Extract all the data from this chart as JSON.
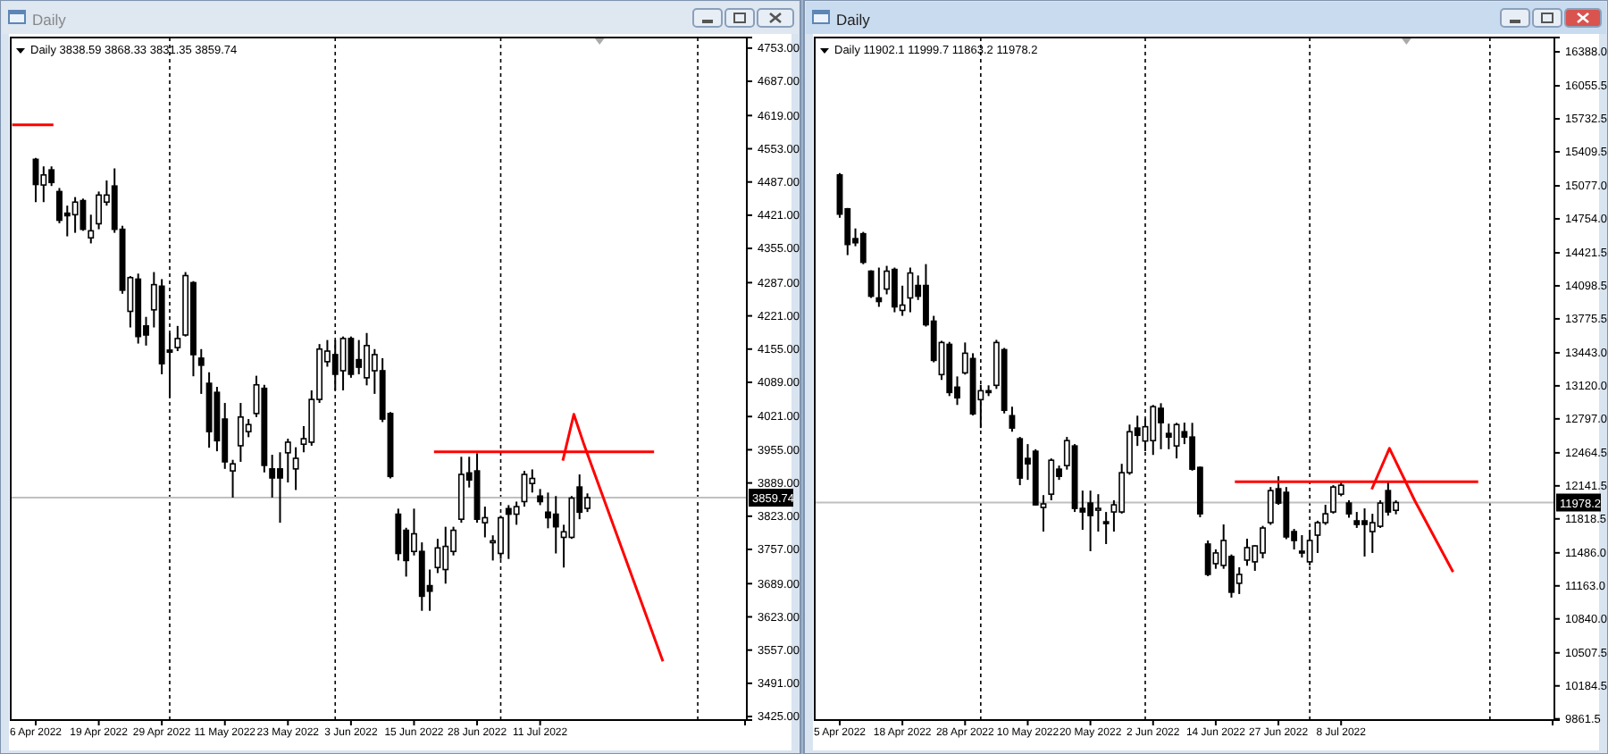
{
  "chart_data": [
    {
      "type": "candlestick",
      "title": "Daily",
      "subtitle": "Daily 3838.59 3868.33 3831.35 3859.74",
      "color": "#000000",
      "categories": [
        "6 Apr 2022",
        null,
        null,
        null,
        null,
        null,
        null,
        null,
        "19 Apr 2022",
        null,
        null,
        null,
        null,
        null,
        null,
        null,
        "29 Apr 2022",
        null,
        null,
        null,
        null,
        null,
        null,
        null,
        "11 May 2022",
        null,
        null,
        null,
        null,
        null,
        null,
        null,
        "23 May 2022",
        null,
        null,
        null,
        null,
        null,
        null,
        null,
        "3 Jun 2022",
        null,
        null,
        null,
        null,
        null,
        null,
        null,
        "15 Jun 2022",
        null,
        null,
        null,
        null,
        null,
        null,
        null,
        "28 Jun 2022",
        null,
        null,
        null,
        null,
        null,
        null,
        null,
        "11 Jul 2022",
        null,
        null,
        null,
        null,
        null,
        null,
        null,
        null,
        null,
        null,
        null,
        null,
        null,
        null,
        null,
        null,
        null,
        null,
        null,
        null,
        null,
        null,
        null,
        null,
        null,
        null
      ],
      "ohlc": [
        [
          4532,
          4535,
          4447,
          4482
        ],
        [
          4481,
          4518,
          4447,
          4501
        ],
        [
          4511,
          4518,
          4479,
          4486
        ],
        [
          4468,
          4475,
          4405,
          4411
        ],
        [
          4425,
          4440,
          4379,
          4420
        ],
        [
          4422,
          4457,
          4386,
          4447
        ],
        [
          4450,
          4454,
          4390,
          4393
        ],
        [
          4376,
          4422,
          4365,
          4390
        ],
        [
          4404,
          4468,
          4393,
          4461
        ],
        [
          4447,
          4490,
          4440,
          4461
        ],
        [
          4479,
          4514,
          4386,
          4393
        ],
        [
          4393,
          4400,
          4265,
          4272
        ],
        [
          4230,
          4300,
          4198,
          4297
        ],
        [
          4294,
          4305,
          4166,
          4180
        ],
        [
          4201,
          4219,
          4162,
          4183
        ],
        [
          4233,
          4308,
          4198,
          4283
        ],
        [
          4280,
          4294,
          4105,
          4126
        ],
        [
          4153,
          4187,
          4059,
          4149
        ],
        [
          4158,
          4201,
          4151,
          4176
        ],
        [
          4183,
          4308,
          4180,
          4301
        ],
        [
          4287,
          4290,
          4101,
          4144
        ],
        [
          4137,
          4155,
          4066,
          4123
        ],
        [
          4087,
          4109,
          3959,
          3991
        ],
        [
          4069,
          4080,
          3952,
          3973
        ],
        [
          4016,
          4048,
          3917,
          3931
        ],
        [
          3913,
          3935,
          3860,
          3927
        ],
        [
          3963,
          4048,
          3931,
          4020
        ],
        [
          3991,
          4016,
          3980,
          4005
        ],
        [
          4027,
          4102,
          4020,
          4084
        ],
        [
          4077,
          4084,
          3910,
          3924
        ],
        [
          3917,
          3945,
          3860,
          3899
        ],
        [
          3917,
          3950,
          3810,
          3899
        ],
        [
          3949,
          3977,
          3890,
          3970
        ],
        [
          3917,
          3960,
          3875,
          3938
        ],
        [
          3966,
          4002,
          3950,
          3977
        ],
        [
          3970,
          4073,
          3963,
          4055
        ],
        [
          4055,
          4165,
          4048,
          4155
        ],
        [
          4130,
          4173,
          4120,
          4151
        ],
        [
          4144,
          4173,
          4073,
          4105
        ],
        [
          4112,
          4180,
          4073,
          4176
        ],
        [
          4176,
          4180,
          4098,
          4105
        ],
        [
          4134,
          4173,
          4105,
          4119
        ],
        [
          4098,
          4187,
          4083,
          4162
        ],
        [
          4112,
          4155,
          4066,
          4144
        ],
        [
          4112,
          4137,
          4010,
          4016
        ],
        [
          4027,
          4030,
          3898,
          3902
        ],
        [
          3827,
          3838,
          3735,
          3749
        ],
        [
          3795,
          3800,
          3703,
          3735
        ],
        [
          3753,
          3838,
          3745,
          3788
        ],
        [
          3753,
          3771,
          3635,
          3664
        ],
        [
          3685,
          3717,
          3635,
          3674
        ],
        [
          3721,
          3778,
          3710,
          3760
        ],
        [
          3717,
          3802,
          3689,
          3763
        ],
        [
          3753,
          3802,
          3745,
          3795
        ],
        [
          3817,
          3941,
          3810,
          3906
        ],
        [
          3909,
          3941,
          3880,
          3895
        ],
        [
          3913,
          3948,
          3810,
          3817
        ],
        [
          3810,
          3842,
          3781,
          3820
        ],
        [
          3771,
          3785,
          3735,
          3774
        ],
        [
          3749,
          3824,
          3738,
          3820
        ],
        [
          3838,
          3845,
          3738,
          3827
        ],
        [
          3827,
          3852,
          3806,
          3842
        ],
        [
          3852,
          3913,
          3842,
          3906
        ],
        [
          3888,
          3916,
          3870,
          3898
        ],
        [
          3863,
          3877,
          3845,
          3852
        ],
        [
          3831,
          3870,
          3799,
          3820
        ],
        [
          3827,
          3863,
          3749,
          3802
        ],
        [
          3781,
          3806,
          3721,
          3792
        ],
        [
          3781,
          3863,
          3778,
          3859
        ],
        [
          3881,
          3906,
          3817,
          3831
        ],
        [
          3838.59,
          3868.33,
          3831.35,
          3859.74
        ],
        null,
        null,
        null,
        null,
        null,
        null,
        null,
        null,
        null,
        null,
        null,
        null,
        null,
        null,
        null,
        null,
        null,
        null,
        null,
        null
      ],
      "ylim": [
        3418,
        4774
      ],
      "yticks": [
        {
          "value": 3425,
          "label": "3425.00"
        },
        {
          "value": 3491,
          "label": "3491.00"
        },
        {
          "value": 3557,
          "label": "3557.00"
        },
        {
          "value": 3623,
          "label": "3623.00"
        },
        {
          "value": 3689,
          "label": "3689.00"
        },
        {
          "value": 3757,
          "label": "3757.00"
        },
        {
          "value": 3823,
          "label": "3823.00"
        },
        {
          "value": 3889,
          "label": "3889.00"
        },
        {
          "value": 3955,
          "label": "3955.00"
        },
        {
          "value": 4021,
          "label": "4021.00"
        },
        {
          "value": 4089,
          "label": "4089.00"
        },
        {
          "value": 4155,
          "label": "4155.00"
        },
        {
          "value": 4221,
          "label": "4221.00"
        },
        {
          "value": 4287,
          "label": "4287.00"
        },
        {
          "value": 4355,
          "label": "4355.00"
        },
        {
          "value": 4421,
          "label": "4421.00"
        },
        {
          "value": 4487,
          "label": "4487.00"
        },
        {
          "value": 4553,
          "label": "4553.00"
        },
        {
          "value": 4619,
          "label": "4619.00"
        },
        {
          "value": 4687,
          "label": "4687.00"
        },
        {
          "value": 4753,
          "label": "4753.00"
        }
      ],
      "ref_lines": [
        {
          "axis": "y",
          "value": 3859.74,
          "label": "3859.74",
          "color": "#c0c0c0",
          "line_style": "solid"
        }
      ],
      "grid": "x"
    },
    {
      "type": "candlestick",
      "title": "Daily",
      "subtitle": "Daily 11902.1 11999.7 11863.2 11978.2",
      "color": "#000000",
      "categories": [
        "5 Apr 2022",
        null,
        null,
        null,
        null,
        null,
        null,
        null,
        "18 Apr 2022",
        null,
        null,
        null,
        null,
        null,
        null,
        null,
        "28 Apr 2022",
        null,
        null,
        null,
        null,
        null,
        null,
        null,
        "10 May 2022",
        null,
        null,
        null,
        null,
        null,
        null,
        null,
        "20 May 2022",
        null,
        null,
        null,
        null,
        null,
        null,
        null,
        "2 Jun 2022",
        null,
        null,
        null,
        null,
        null,
        null,
        null,
        "14 Jun 2022",
        null,
        null,
        null,
        null,
        null,
        null,
        null,
        "27 Jun 2022",
        null,
        null,
        null,
        null,
        null,
        null,
        null,
        "8 Jul 2022",
        null,
        null,
        null,
        null,
        null,
        null,
        null,
        null,
        null,
        null,
        null,
        null,
        null,
        null,
        null,
        null,
        null,
        null,
        null,
        null,
        null,
        null,
        null,
        null,
        null,
        null,
        null
      ],
      "ohlc": [
        [
          15184,
          15201,
          14765,
          14800
        ],
        [
          14852,
          14860,
          14399,
          14503
        ],
        [
          14560,
          14660,
          14486,
          14520
        ],
        [
          14608,
          14626,
          14310,
          14329
        ],
        [
          14242,
          14250,
          13980,
          13997
        ],
        [
          13980,
          14277,
          13893,
          13945
        ],
        [
          14067,
          14294,
          14015,
          14242
        ],
        [
          14259,
          14277,
          13840,
          13893
        ],
        [
          13858,
          14100,
          13805,
          13910
        ],
        [
          13980,
          14277,
          13840,
          14224
        ],
        [
          14102,
          14200,
          13960,
          13997
        ],
        [
          14102,
          14311,
          13700,
          13718
        ],
        [
          13753,
          13805,
          13350,
          13369
        ],
        [
          13230,
          13560,
          13177,
          13544
        ],
        [
          13526,
          13550,
          13020,
          13055
        ],
        [
          13107,
          13212,
          12933,
          13003
        ],
        [
          13247,
          13544,
          13230,
          13439
        ],
        [
          13387,
          13439,
          12830,
          12846
        ],
        [
          12985,
          13130,
          12707,
          13072
        ],
        [
          13072,
          13125,
          13020,
          13060
        ],
        [
          13125,
          13570,
          13090,
          13544
        ],
        [
          13474,
          13491,
          12850,
          12881
        ],
        [
          12828,
          12916,
          12671,
          12707
        ],
        [
          12602,
          12620,
          12148,
          12218
        ],
        [
          12410,
          12550,
          12200,
          12357
        ],
        [
          12480,
          12500,
          11950,
          11956
        ],
        [
          11930,
          12050,
          11694,
          11965
        ],
        [
          12060,
          12410,
          12000,
          12392
        ],
        [
          12305,
          12340,
          12200,
          12235
        ],
        [
          12340,
          12620,
          12300,
          12584
        ],
        [
          12532,
          12550,
          11886,
          11921
        ],
        [
          11921,
          12095,
          11711,
          11886
        ],
        [
          11973,
          12095,
          11502,
          11851
        ],
        [
          11905,
          12060,
          11694,
          11921
        ],
        [
          11790,
          11886,
          11572,
          11785
        ],
        [
          11886,
          12000,
          11694,
          11956
        ],
        [
          11886,
          12357,
          11870,
          12270
        ],
        [
          12270,
          12741,
          12250,
          12671
        ],
        [
          12707,
          12828,
          12532,
          12636
        ],
        [
          12580,
          12800,
          12480,
          12720
        ],
        [
          12584,
          12933,
          12444,
          12916
        ],
        [
          12900,
          12950,
          12500,
          12760
        ],
        [
          12654,
          12750,
          12500,
          12619
        ],
        [
          12532,
          12758,
          12410,
          12741
        ],
        [
          12671,
          12760,
          12550,
          12619
        ],
        [
          12619,
          12758,
          12290,
          12305
        ],
        [
          12322,
          12330,
          11834,
          11868
        ],
        [
          11572,
          11607,
          11258,
          11275
        ],
        [
          11380,
          11520,
          11330,
          11485
        ],
        [
          11363,
          11764,
          11330,
          11607
        ],
        [
          11450,
          11470,
          11048,
          11101
        ],
        [
          11188,
          11345,
          11083,
          11275
        ],
        [
          11415,
          11624,
          11360,
          11537
        ],
        [
          11398,
          11560,
          11310,
          11554
        ],
        [
          11485,
          11750,
          11432,
          11729
        ],
        [
          11781,
          12130,
          11760,
          12095
        ],
        [
          12113,
          12235,
          11956,
          11973
        ],
        [
          12078,
          12130,
          11620,
          11642
        ],
        [
          11694,
          11720,
          11519,
          11607
        ],
        [
          11502,
          11659,
          11440,
          11495
        ],
        [
          11398,
          11712,
          11363,
          11607
        ],
        [
          11659,
          11800,
          11485,
          11781
        ],
        [
          11781,
          11956,
          11760,
          11868
        ],
        [
          11886,
          12148,
          11870,
          12130
        ],
        [
          12060,
          12183,
          12040,
          12148
        ],
        [
          11973,
          12000,
          11830,
          11868
        ],
        [
          11799,
          11886,
          11730,
          11764
        ],
        [
          11799,
          11921,
          11450,
          11764
        ],
        [
          11694,
          11868,
          11485,
          11781
        ],
        [
          11746,
          12000,
          11730,
          11973
        ],
        [
          12095,
          12183,
          11850,
          11886
        ],
        [
          11902.1,
          11999.7,
          11863.2,
          11978.2
        ],
        null,
        null,
        null,
        null,
        null,
        null,
        null,
        null,
        null,
        null,
        null,
        null,
        null,
        null,
        null,
        null,
        null,
        null,
        null,
        null
      ],
      "ylim": [
        9850,
        16528
      ],
      "yticks": [
        {
          "value": 9861.5,
          "label": "9861.5"
        },
        {
          "value": 10184.5,
          "label": "10184.5"
        },
        {
          "value": 10507.5,
          "label": "10507.5"
        },
        {
          "value": 10840,
          "label": "10840.0"
        },
        {
          "value": 11163,
          "label": "11163.0"
        },
        {
          "value": 11486,
          "label": "11486.0"
        },
        {
          "value": 11818.5,
          "label": "11818.5"
        },
        {
          "value": 12141.5,
          "label": "12141.5"
        },
        {
          "value": 12464.5,
          "label": "12464.5"
        },
        {
          "value": 12797,
          "label": "12797.0"
        },
        {
          "value": 13120,
          "label": "13120.0"
        },
        {
          "value": 13443,
          "label": "13443.0"
        },
        {
          "value": 13775.5,
          "label": "13775.5"
        },
        {
          "value": 14098.5,
          "label": "14098.5"
        },
        {
          "value": 14421.5,
          "label": "14421.5"
        },
        {
          "value": 14754,
          "label": "14754.0"
        },
        {
          "value": 15077,
          "label": "15077.0"
        },
        {
          "value": 15409.5,
          "label": "15409.5"
        },
        {
          "value": 15732.5,
          "label": "15732.5"
        },
        {
          "value": 16055.5,
          "label": "16055.5"
        },
        {
          "value": 16388,
          "label": "16388.0"
        }
      ],
      "ref_lines": [
        {
          "axis": "y",
          "value": 11978.2,
          "label": "11978.2",
          "color": "#c0c0c0",
          "line_style": "solid"
        }
      ],
      "grid": "x"
    }
  ]
}
